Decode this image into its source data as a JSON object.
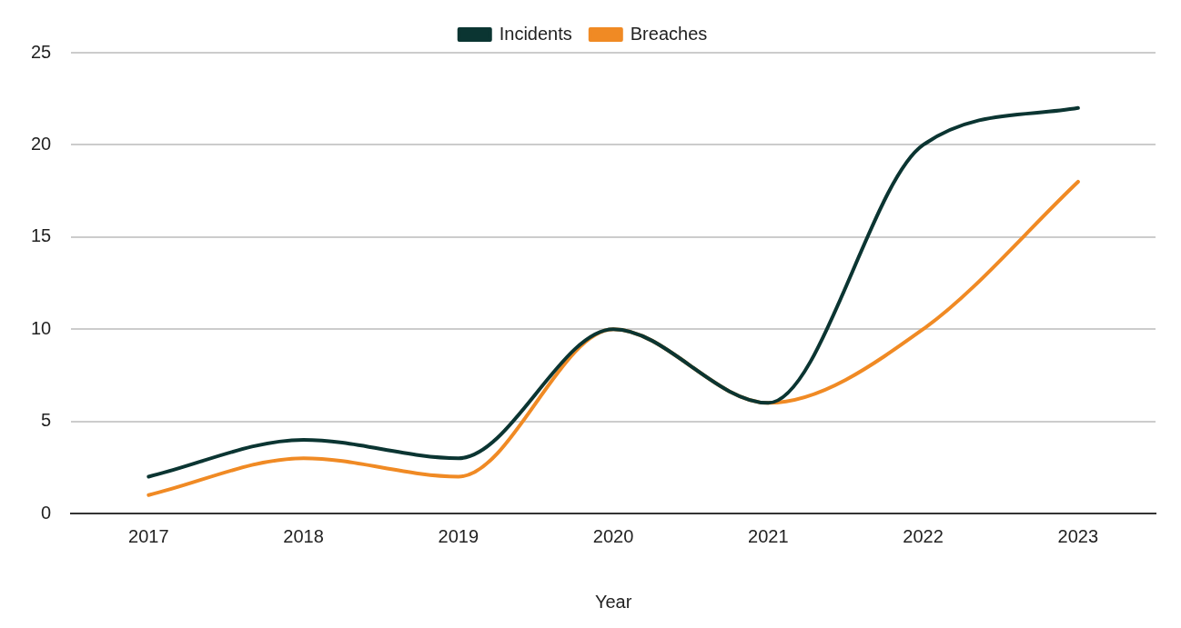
{
  "chart_data": {
    "type": "line",
    "xlabel": "Year",
    "categories": [
      "2017",
      "2018",
      "2019",
      "2020",
      "2021",
      "2022",
      "2023"
    ],
    "series": [
      {
        "name": "Incidents",
        "color": "#0b3532",
        "values": [
          2,
          4,
          3,
          10,
          6,
          20,
          22
        ]
      },
      {
        "name": "Breaches",
        "color": "#f08a24",
        "values": [
          1,
          3,
          2,
          10,
          6,
          10,
          18
        ]
      }
    ],
    "ylim": [
      0,
      25
    ],
    "yticks": [
      0,
      5,
      10,
      15,
      20,
      25
    ],
    "grid": "y",
    "legend": "top",
    "marker": "none",
    "line_style": "solid"
  }
}
